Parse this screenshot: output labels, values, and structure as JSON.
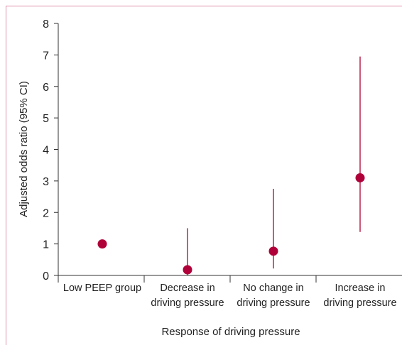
{
  "colors": {
    "frame": "#e090a8",
    "marker": "#b0003a",
    "ci_line": "#c03058",
    "axis": "#333333"
  },
  "chart_data": {
    "type": "scatter",
    "xlabel": "Response of driving pressure",
    "ylabel": "Adjusted odds ratio (95% CI)",
    "ylim": [
      0,
      8
    ],
    "y_ticks": [
      "0",
      "1",
      "2",
      "3",
      "4",
      "5",
      "6",
      "7",
      "8"
    ],
    "categories": [
      {
        "line1": "Low PEEP group",
        "line2": ""
      },
      {
        "line1": "Decrease in",
        "line2": "driving pressure"
      },
      {
        "line1": "No change in",
        "line2": "driving pressure"
      },
      {
        "line1": "Increase in",
        "line2": "driving pressure"
      }
    ],
    "points": [
      {
        "value": 1.0,
        "ci_low": null,
        "ci_high": null
      },
      {
        "value": 0.18,
        "ci_low": 0.0,
        "ci_high": 1.5
      },
      {
        "value": 0.77,
        "ci_low": 0.22,
        "ci_high": 2.75
      },
      {
        "value": 3.1,
        "ci_low": 1.38,
        "ci_high": 6.95
      }
    ],
    "grid": false,
    "legend": "none"
  }
}
